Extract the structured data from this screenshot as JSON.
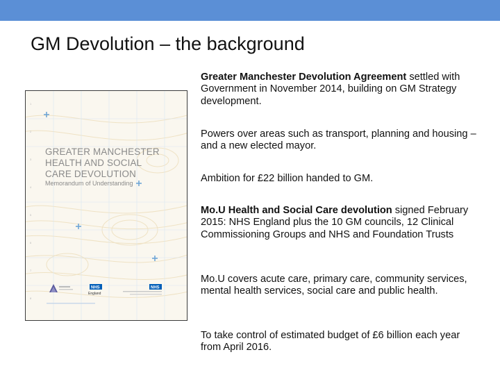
{
  "slide": {
    "title": "GM Devolution – the background"
  },
  "cover": {
    "title_lines": [
      "GREATER MANCHESTER",
      "HEALTH AND SOCIAL",
      "CARE DEVOLUTION"
    ],
    "subtitle": "Memorandum of Understanding",
    "logos": [
      "nhs-england-logo",
      "agma-logo",
      "ccg-logo"
    ]
  },
  "bullets": [
    {
      "bold": "Greater Manchester Devolution Agreement",
      "text": " settled with Government in November 2014, building on GM Strategy development."
    },
    {
      "bold": "",
      "text": "Powers over areas such as transport, planning and housing – and a new elected mayor."
    },
    {
      "bold": "",
      "text": "Ambition for £22 billion handed to GM."
    },
    {
      "bold": "Mo.U Health and Social Care devolution",
      "text": " signed February 2015: NHS England plus the 10 GM councils, 12 Clinical Commissioning Groups and NHS and Foundation Trusts"
    },
    {
      "bold": "",
      "text": "Mo.U covers acute care, primary care, community services, mental health services, social care and public health."
    },
    {
      "bold": "",
      "text": "To take control of estimated budget of £6 billion each year from April 2016."
    }
  ]
}
